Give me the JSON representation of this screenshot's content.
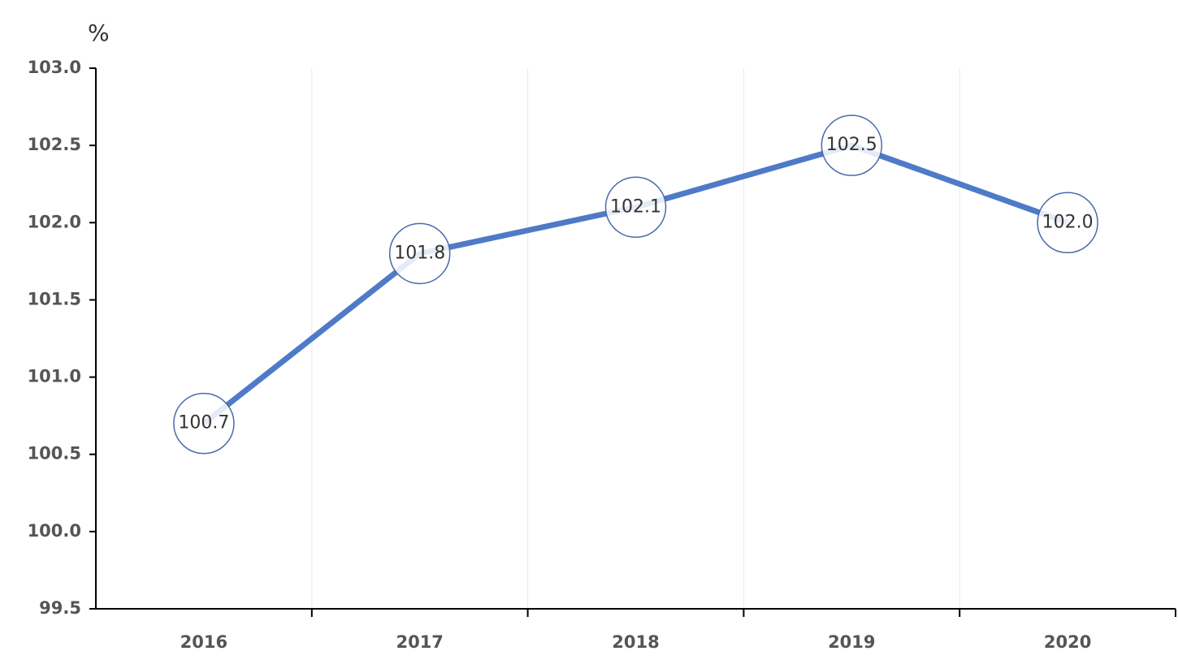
{
  "chart_data": {
    "type": "line",
    "y_label": "%",
    "categories": [
      "2016",
      "2017",
      "2018",
      "2019",
      "2020"
    ],
    "values": [
      100.7,
      101.8,
      102.1,
      102.5,
      102.0
    ],
    "value_labels": [
      "100.7",
      "101.8",
      "102.1",
      "102.5",
      "102.0"
    ],
    "color": "#4e7ac7",
    "ylim": [
      99.5,
      103.0
    ],
    "yticks": [
      99.5,
      {
        "value": 100,
        "label": "100.0"
      },
      100.5,
      {
        "value": 101,
        "label": "101.0"
      },
      101.5,
      {
        "value": 102,
        "label": "102.0"
      },
      102.5,
      {
        "value": 103,
        "label": "103.0"
      }
    ],
    "grid": true
  }
}
